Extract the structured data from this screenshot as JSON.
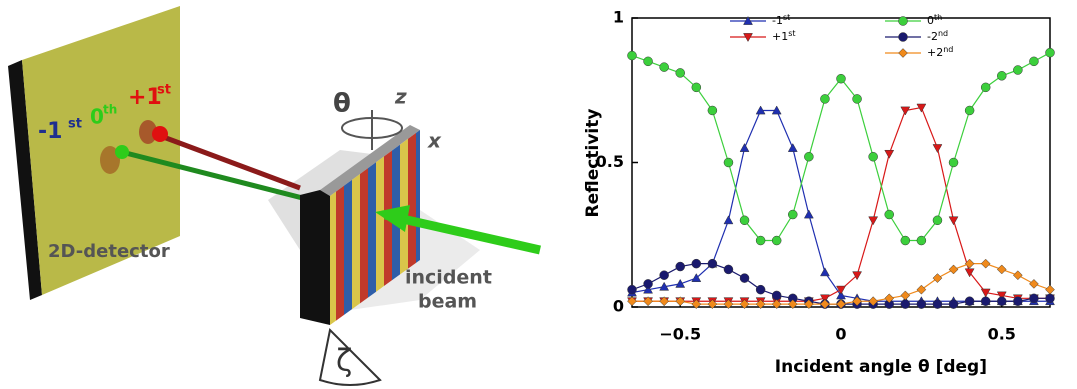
{
  "diagram": {
    "orders": [
      {
        "base": "-1",
        "sup": "st",
        "color": "#1f2f8f"
      },
      {
        "base": "0",
        "sup": "th",
        "color": "#2ecc1a"
      },
      {
        "base": "+1",
        "sup": "st",
        "color": "#e01010"
      }
    ],
    "detector": "2D-detector",
    "theta": "θ",
    "z": "z",
    "x": "x",
    "incident": "incident",
    "beam": "beam",
    "zeta": "ζ"
  },
  "chart_data": {
    "type": "line",
    "xlabel": "Incident angle θ [deg]",
    "ylabel": "Reflectivity",
    "xlim": [
      -0.65,
      0.65
    ],
    "ylim": [
      0,
      1
    ],
    "xticks": [
      {
        "value": -0.5,
        "label": "−0.5"
      },
      0,
      0.5
    ],
    "yticks": [
      0,
      0.5,
      1
    ],
    "x": [
      -0.65,
      -0.6,
      -0.55,
      -0.5,
      -0.45,
      -0.4,
      -0.35,
      -0.3,
      -0.25,
      -0.2,
      -0.15,
      -0.1,
      -0.05,
      0,
      0.05,
      0.1,
      0.15,
      0.2,
      0.25,
      0.3,
      0.35,
      0.4,
      0.45,
      0.5,
      0.55,
      0.6,
      0.65
    ],
    "series": [
      {
        "name": "-1st",
        "color": "#1f2fb0",
        "marker": "triangle-up",
        "values": [
          0.05,
          0.06,
          0.07,
          0.08,
          0.1,
          0.15,
          0.3,
          0.55,
          0.68,
          0.68,
          0.55,
          0.32,
          0.12,
          0.04,
          0.03,
          0.02,
          0.02,
          0.02,
          0.02,
          0.02,
          0.02,
          0.02,
          0.02,
          0.02,
          0.02,
          0.02,
          0.02
        ]
      },
      {
        "name": "+1st",
        "color": "#d81818",
        "marker": "triangle-down",
        "values": [
          0.02,
          0.02,
          0.02,
          0.02,
          0.02,
          0.02,
          0.02,
          0.02,
          0.02,
          0.02,
          0.02,
          0.02,
          0.03,
          0.06,
          0.11,
          0.3,
          0.53,
          0.68,
          0.69,
          0.55,
          0.3,
          0.12,
          0.05,
          0.04,
          0.03,
          0.03,
          0.03
        ]
      },
      {
        "name": "0th",
        "color": "#3ccf3c",
        "marker": "circle",
        "values": [
          0.87,
          0.85,
          0.83,
          0.81,
          0.76,
          0.68,
          0.5,
          0.3,
          0.23,
          0.23,
          0.32,
          0.52,
          0.72,
          0.79,
          0.72,
          0.52,
          0.32,
          0.23,
          0.23,
          0.3,
          0.5,
          0.68,
          0.76,
          0.8,
          0.82,
          0.85,
          0.88
        ]
      },
      {
        "name": "-2nd",
        "color": "#1a1a6e",
        "marker": "circle",
        "values": [
          0.06,
          0.08,
          0.11,
          0.14,
          0.15,
          0.15,
          0.13,
          0.1,
          0.06,
          0.04,
          0.03,
          0.02,
          0.01,
          0.01,
          0.01,
          0.01,
          0.01,
          0.01,
          0.01,
          0.01,
          0.01,
          0.02,
          0.02,
          0.02,
          0.02,
          0.03,
          0.03
        ]
      },
      {
        "name": "+2nd",
        "color": "#f08a1c",
        "marker": "diamond",
        "values": [
          0.02,
          0.02,
          0.02,
          0.02,
          0.01,
          0.01,
          0.01,
          0.01,
          0.01,
          0.01,
          0.01,
          0.01,
          0.01,
          0.01,
          0.02,
          0.02,
          0.03,
          0.04,
          0.06,
          0.1,
          0.13,
          0.15,
          0.15,
          0.13,
          0.11,
          0.08,
          0.06
        ]
      }
    ]
  }
}
